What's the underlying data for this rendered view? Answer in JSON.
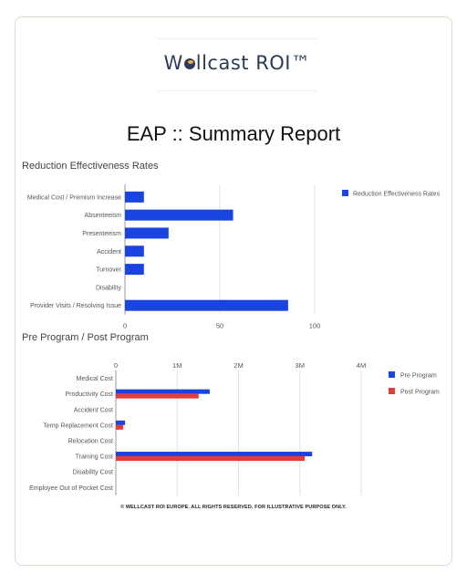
{
  "logo": {
    "part1": "W",
    "part2": "llcast",
    "part3": "ROI™"
  },
  "report_title": "EAP :: Summary Report",
  "footer": "© WELLCAST ROI EUROPE. ALL RIGHTS RESERVED. FOR ILLUSTRATIVE PURPOSE ONLY.",
  "colors": {
    "blue": "#1a44e0",
    "red": "#e53b3b"
  },
  "chart_data": [
    {
      "type": "bar",
      "orientation": "horizontal",
      "title": "Reduction Effectiveness Rates",
      "categories": [
        "Medical Cost / Premium Increase",
        "Absenteeism",
        "Presenteeism",
        "Accident",
        "Turnover",
        "Disability",
        "Provider Visits / Resolving Issue"
      ],
      "series": [
        {
          "name": "Reduction Effectiveness Rates",
          "values": [
            10,
            57,
            23,
            10,
            10,
            0,
            86
          ]
        }
      ],
      "xlim": [
        0,
        100
      ],
      "xticks": [
        "0",
        "50",
        "100"
      ],
      "legend": "top-right",
      "grid": true
    },
    {
      "type": "bar",
      "orientation": "horizontal",
      "title": "Pre Program / Post Program",
      "categories": [
        "Medical Cost",
        "Productivity Cost",
        "Accident Cost",
        "Temp Replacement Cost",
        "Relocation Cost",
        "Training Cost",
        "Disability Cost",
        "Employee Out of Pocket Cost"
      ],
      "series": [
        {
          "name": "Pre Program",
          "values": [
            0,
            1530000,
            0,
            150000,
            0,
            3200000,
            0,
            0
          ]
        },
        {
          "name": "Post Program",
          "values": [
            0,
            1350000,
            0,
            120000,
            0,
            3080000,
            0,
            0
          ]
        }
      ],
      "xlim": [
        0,
        4000000
      ],
      "xticks": [
        "0",
        "1M",
        "2M",
        "3M",
        "4M"
      ],
      "legend": "top-right",
      "grid": true
    }
  ]
}
